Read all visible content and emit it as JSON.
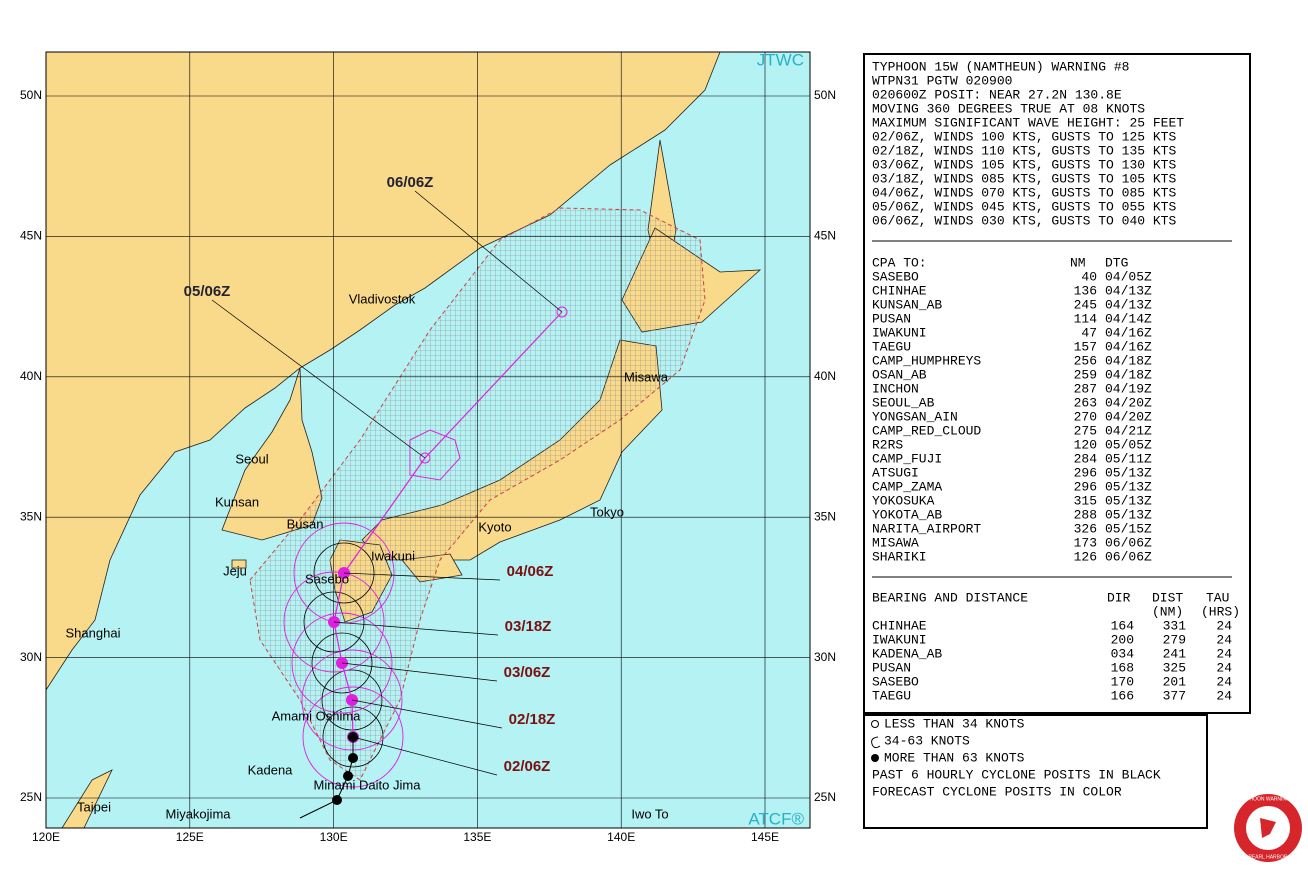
{
  "map": {
    "badge_top": "JTWC",
    "badge_bottom": "ATCF®",
    "lat_labels": [
      "50N",
      "45N",
      "40N",
      "35N",
      "30N",
      "25N"
    ],
    "lon_labels": [
      "120E",
      "125E",
      "130E",
      "135E",
      "140E",
      "145E"
    ],
    "places": [
      "Vladivostok",
      "Seoul",
      "Kunsan",
      "Busan",
      "Jeju",
      "Sasebo",
      "Iwakuni",
      "Kyoto",
      "Tokyo",
      "Misawa",
      "Shanghai",
      "Amami Oshima",
      "Kadena",
      "Minami Daito Jima",
      "Taipei",
      "Miyakojima",
      "Iwo To"
    ],
    "times": [
      "06/06Z",
      "05/06Z",
      "04/06Z",
      "03/18Z",
      "03/06Z",
      "02/18Z",
      "02/06Z"
    ]
  },
  "warning": {
    "lines": [
      "TYPHOON 15W (NAMTHEUN) WARNING #8",
      "WTPN31 PGTW 020900",
      "020600Z POSIT: NEAR 27.2N 130.8E",
      "MOVING 360 DEGREES TRUE AT 08 KNOTS",
      "MAXIMUM SIGNIFICANT WAVE HEIGHT: 25 FEET",
      "02/06Z, WINDS 100 KTS, GUSTS TO 125 KTS",
      "02/18Z, WINDS 110 KTS, GUSTS TO 135 KTS",
      "03/06Z, WINDS 105 KTS, GUSTS TO 130 KTS",
      "03/18Z, WINDS 085 KTS, GUSTS TO 105 KTS",
      "04/06Z, WINDS 070 KTS, GUSTS TO 085 KTS",
      "05/06Z, WINDS 045 KTS, GUSTS TO 055 KTS",
      "06/06Z, WINDS 030 KTS, GUSTS TO 040 KTS"
    ]
  },
  "cpa": {
    "header": [
      "CPA TO:",
      "NM",
      "DTG"
    ],
    "rows": [
      [
        "SASEBO",
        "40",
        "04/05Z"
      ],
      [
        "CHINHAE",
        "136",
        "04/13Z"
      ],
      [
        "KUNSAN_AB",
        "245",
        "04/13Z"
      ],
      [
        "PUSAN",
        "114",
        "04/14Z"
      ],
      [
        "IWAKUNI",
        "47",
        "04/16Z"
      ],
      [
        "TAEGU",
        "157",
        "04/16Z"
      ],
      [
        "CAMP_HUMPHREYS",
        "256",
        "04/18Z"
      ],
      [
        "OSAN_AB",
        "259",
        "04/18Z"
      ],
      [
        "INCHON",
        "287",
        "04/19Z"
      ],
      [
        "SEOUL_AB",
        "263",
        "04/20Z"
      ],
      [
        "YONGSAN_AIN",
        "270",
        "04/20Z"
      ],
      [
        "CAMP_RED_CLOUD",
        "275",
        "04/21Z"
      ],
      [
        "R2RS",
        "120",
        "05/05Z"
      ],
      [
        "CAMP_FUJI",
        "284",
        "05/11Z"
      ],
      [
        "ATSUGI",
        "296",
        "05/13Z"
      ],
      [
        "CAMP_ZAMA",
        "296",
        "05/13Z"
      ],
      [
        "YOKOSUKA",
        "315",
        "05/13Z"
      ],
      [
        "YOKOTA_AB",
        "288",
        "05/13Z"
      ],
      [
        "NARITA_AIRPORT",
        "326",
        "05/15Z"
      ],
      [
        "MISAWA",
        "173",
        "06/06Z"
      ],
      [
        "SHARIKI",
        "126",
        "06/06Z"
      ]
    ]
  },
  "bearing": {
    "header": [
      "BEARING AND DISTANCE",
      "DIR",
      "DIST",
      "(NM)",
      "TAU",
      "(HRS)"
    ],
    "rows": [
      [
        "CHINHAE",
        "164",
        "331",
        "24"
      ],
      [
        "IWAKUNI",
        "200",
        "279",
        "24"
      ],
      [
        "KADENA_AB",
        "034",
        "241",
        "24"
      ],
      [
        "PUSAN",
        "168",
        "325",
        "24"
      ],
      [
        "SASEBO",
        "170",
        "201",
        "24"
      ],
      [
        "TAEGU",
        "166",
        "377",
        "24"
      ]
    ]
  },
  "legend": {
    "lines": [
      "LESS THAN 34 KNOTS",
      "34-63 KNOTS",
      "MORE THAN 63 KNOTS",
      "PAST 6 HOURLY CYCLONE POSITS IN BLACK",
      "FORECAST CYCLONE POSITS IN COLOR"
    ]
  },
  "logo": {
    "top": "JOINT TYPHOON WARNING CENTER",
    "bottom": "PEARL HARBOR"
  }
}
